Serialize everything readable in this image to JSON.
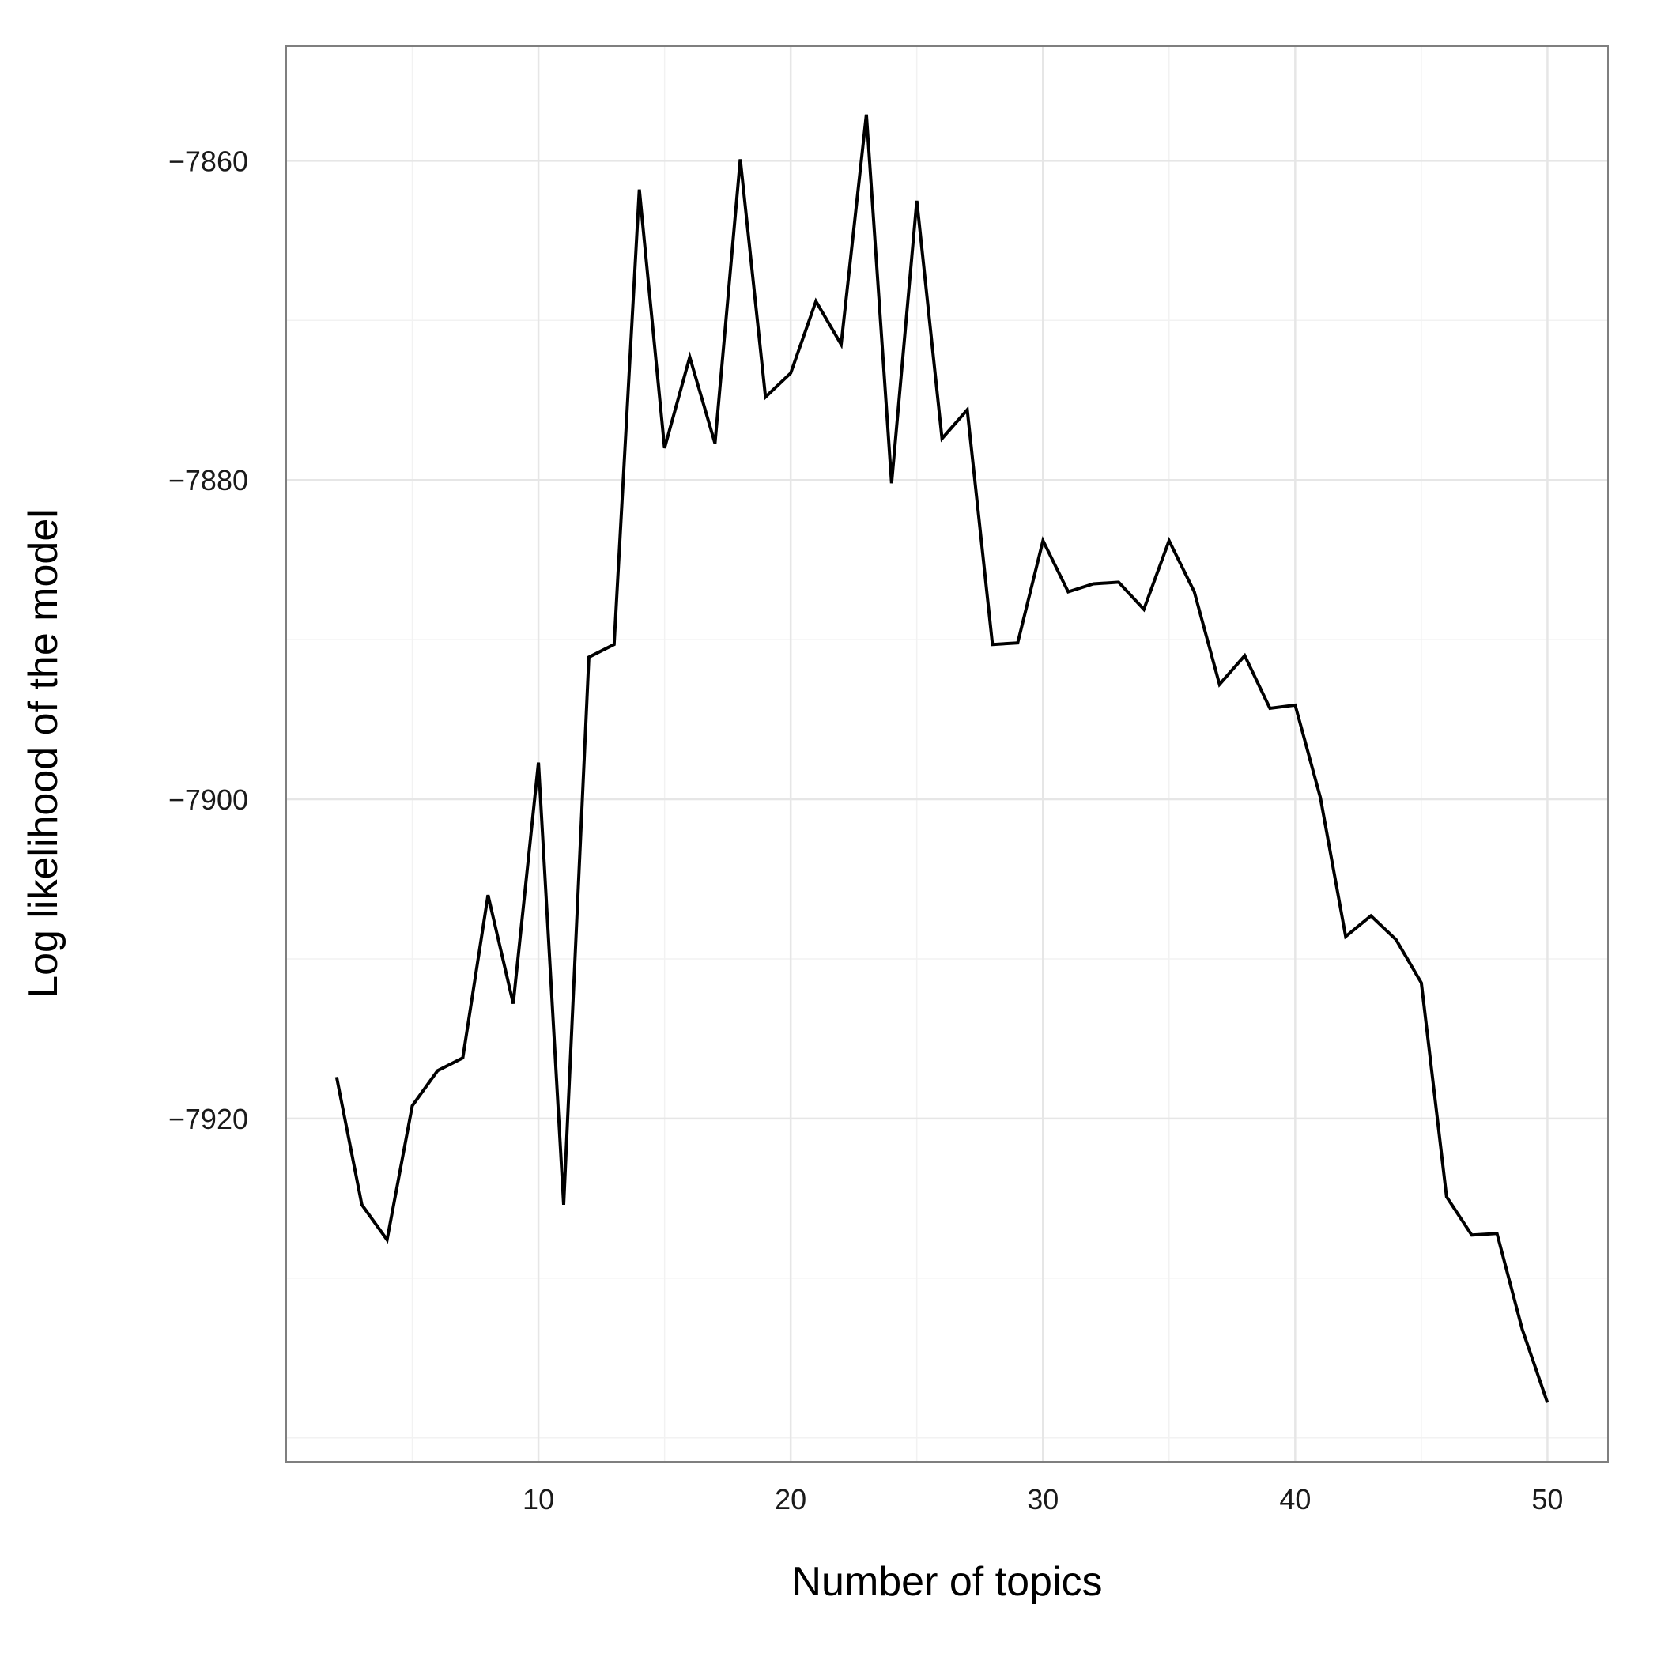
{
  "chart_data": {
    "type": "line",
    "title": "",
    "xlabel": "Number of topics",
    "ylabel": "Log likelihood of the model",
    "xlim": [
      0,
      52.4
    ],
    "ylim": [
      -7941.5,
      -7852.8
    ],
    "x_ticks": [
      10,
      20,
      30,
      40,
      50
    ],
    "x_tick_labels": [
      "10",
      "20",
      "30",
      "40",
      "50"
    ],
    "y_ticks": [
      -7860,
      -7880,
      -7900,
      -7920
    ],
    "y_tick_labels": [
      "−7860",
      "−7880",
      "−7900",
      "−7920"
    ],
    "x_minor_ticks": [
      5,
      15,
      25,
      35,
      45
    ],
    "y_minor_ticks": [
      -7870,
      -7890,
      -7910,
      -7930,
      -7940
    ],
    "grid": true,
    "legend": "none",
    "colors": {
      "line": "#000000",
      "panel_border": "#7f7f7f",
      "grid_major": "#e6e6e6",
      "grid_minor": "#f2f2f2",
      "background": "#ffffff"
    },
    "series": [
      {
        "x": [
          2,
          3,
          4,
          5,
          6,
          7,
          8,
          9,
          10,
          11,
          12,
          13,
          14,
          15,
          16,
          17,
          18,
          19,
          20,
          21,
          22,
          23,
          24,
          25,
          26,
          27,
          28,
          29,
          30,
          31,
          32,
          33,
          34,
          35,
          36,
          37,
          38,
          39,
          40,
          41,
          42,
          43,
          44,
          45,
          46,
          47,
          48,
          49,
          50
        ],
        "y": [
          -7917.4,
          -7925.4,
          -7927.6,
          -7919.2,
          -7917.0,
          -7916.2,
          -7906.0,
          -7912.8,
          -7897.7,
          -7925.4,
          -7891.1,
          -7890.3,
          -7861.8,
          -7878.0,
          -7872.3,
          -7877.7,
          -7859.9,
          -7874.8,
          -7873.3,
          -7868.8,
          -7871.5,
          -7857.1,
          -7880.2,
          -7862.5,
          -7877.4,
          -7875.6,
          -7890.3,
          -7890.2,
          -7883.8,
          -7887.0,
          -7886.5,
          -7886.4,
          -7888.1,
          -7883.8,
          -7887.0,
          -7892.8,
          -7891.0,
          -7894.3,
          -7894.1,
          -7899.9,
          -7908.6,
          -7907.3,
          -7908.8,
          -7911.5,
          -7924.9,
          -7927.3,
          -7927.2,
          -7933.2,
          -7937.8
        ]
      }
    ]
  }
}
